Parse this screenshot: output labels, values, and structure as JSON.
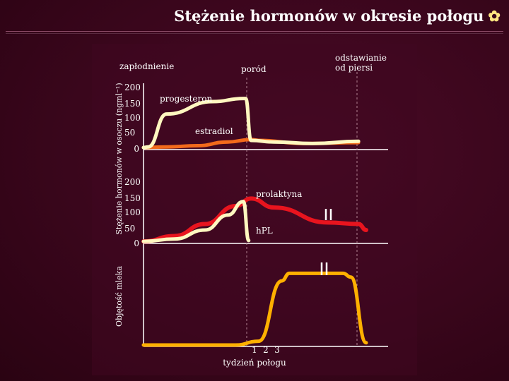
{
  "title": "Stężenie hormonów w okresie połogu",
  "title_icon": "gear-icon",
  "colors": {
    "background": "#3a061c",
    "progesteron": "#fff8c0",
    "estradiol": "#f26a1b",
    "prolaktyna": "#e8141e",
    "hpl": "#fff8c0",
    "milk": "#ffb000",
    "guides": "#b08090"
  },
  "chart_data": [
    {
      "type": "line",
      "panel": "hormony-steroidowe",
      "ylabel": "Stężenie hormonów w osoczu (ngml⁻¹)",
      "yticks": [
        "200",
        "150",
        "100",
        "50",
        "0"
      ],
      "ylim": [
        0,
        200
      ],
      "annotations": {
        "conception": "zapłodnienie",
        "birth": "poród",
        "weaning": "odstawianie od piersi"
      },
      "series": [
        {
          "name": "progesteron",
          "points": [
            [
              0,
              2
            ],
            [
              0.6,
              4
            ],
            [
              3,
              110
            ],
            [
              9,
              150
            ],
            [
              13,
              160
            ],
            [
              13.3,
              160
            ],
            [
              14,
              25
            ],
            [
              17,
              20
            ],
            [
              22,
              15
            ],
            [
              28,
              22
            ]
          ]
        },
        {
          "name": "estradiol",
          "points": [
            [
              0,
              2
            ],
            [
              3,
              4
            ],
            [
              7,
              8
            ],
            [
              11,
              20
            ],
            [
              14,
              28
            ],
            [
              15,
              25
            ],
            [
              21,
              15
            ],
            [
              28,
              18
            ]
          ]
        }
      ]
    },
    {
      "type": "line",
      "panel": "prolaktyna-hpl",
      "yticks": [
        "200",
        "150",
        "100",
        "50",
        "0"
      ],
      "ylim": [
        0,
        200
      ],
      "series": [
        {
          "name": "prolaktyna",
          "points": [
            [
              0,
              2
            ],
            [
              4,
              20
            ],
            [
              8,
              60
            ],
            [
              12,
              120
            ],
            [
              14,
              145
            ],
            [
              17,
              115
            ],
            [
              24,
              65
            ],
            [
              28,
              60
            ],
            [
              29,
              40
            ]
          ]
        },
        {
          "name": "hPL",
          "points": [
            [
              0,
              2
            ],
            [
              4,
              10
            ],
            [
              8,
              40
            ],
            [
              11,
              90
            ],
            [
              13,
              135
            ],
            [
              13.7,
              5
            ]
          ]
        }
      ]
    },
    {
      "type": "line",
      "panel": "objetosc-mleka",
      "ylabel": "Objętość mleka",
      "xlabel": "tydzień połogu",
      "xticks": [
        "1",
        "2",
        "3"
      ],
      "series": [
        {
          "name": "objętość mleka",
          "points": [
            [
              0,
              0
            ],
            [
              12,
              0
            ],
            [
              15,
              5
            ],
            [
              18,
              85
            ],
            [
              19,
              95
            ],
            [
              26,
              95
            ],
            [
              27,
              90
            ],
            [
              29,
              3
            ]
          ]
        }
      ]
    }
  ]
}
